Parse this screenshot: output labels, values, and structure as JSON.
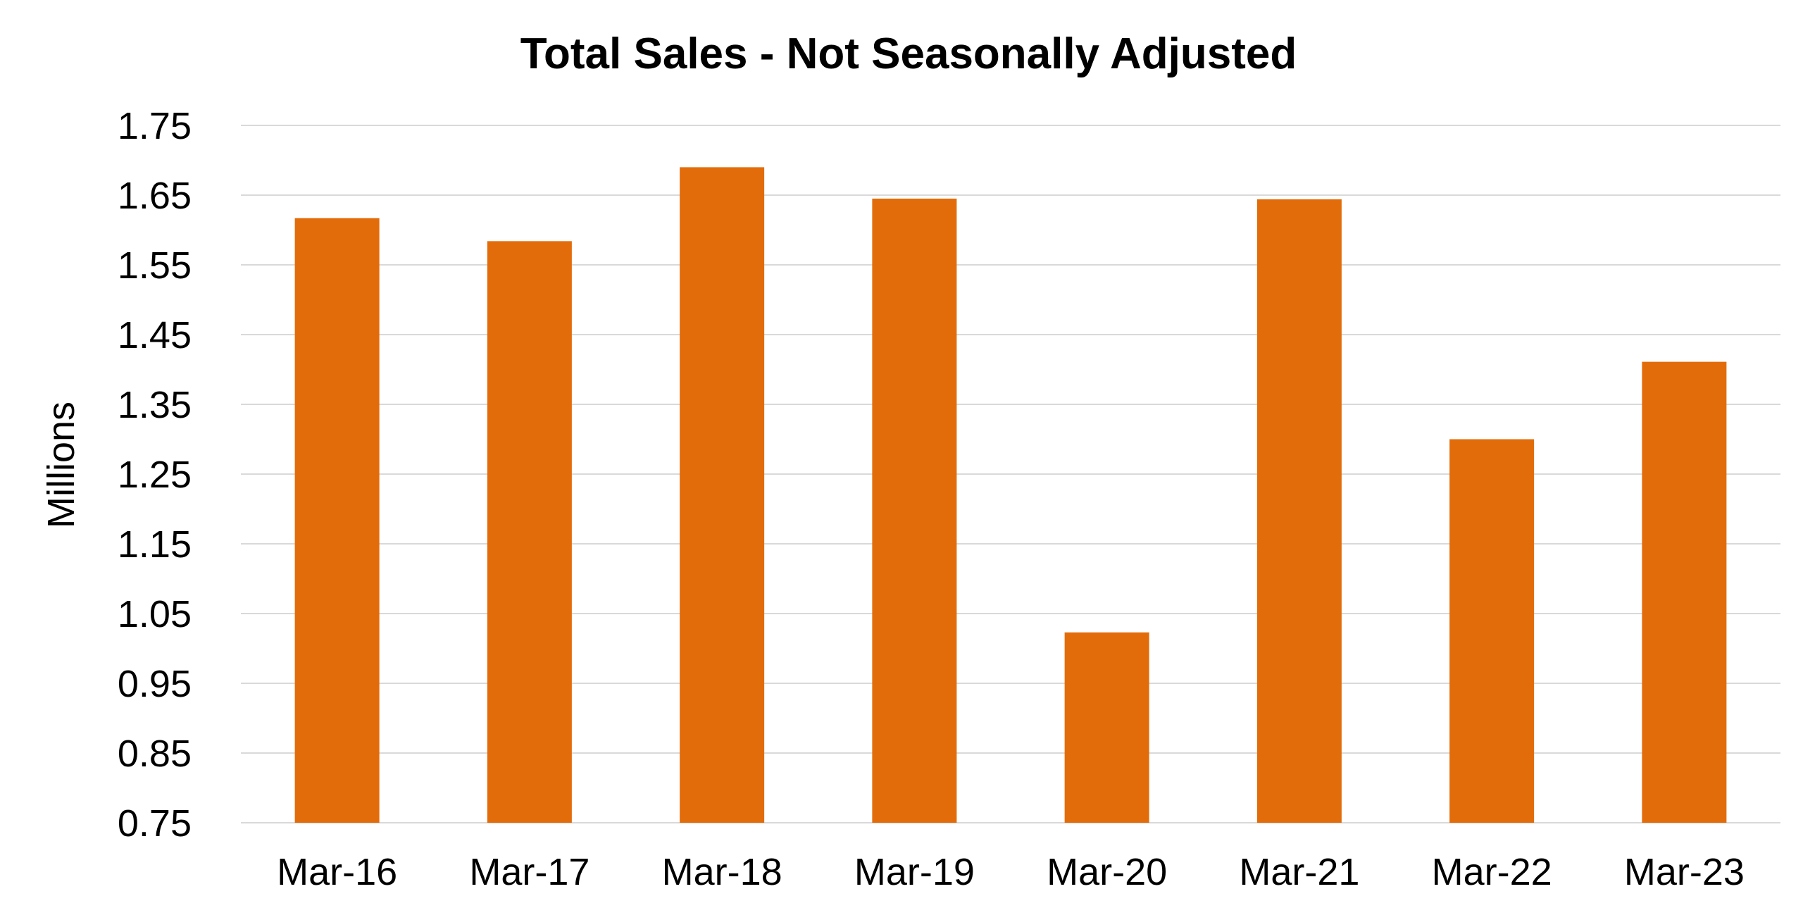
{
  "chart_data": {
    "type": "bar",
    "title": "Total Sales - Not Seasonally Adjusted",
    "xlabel": "",
    "ylabel": "Millions",
    "categories": [
      "Mar-16",
      "Mar-17",
      "Mar-18",
      "Mar-19",
      "Mar-20",
      "Mar-21",
      "Mar-22",
      "Mar-23"
    ],
    "values": [
      1.617,
      1.584,
      1.69,
      1.645,
      1.023,
      1.644,
      1.3,
      1.411
    ],
    "ylim": [
      0.75,
      1.75
    ],
    "yticks": [
      "0.75",
      "0.85",
      "0.95",
      "1.05",
      "1.15",
      "1.25",
      "1.35",
      "1.45",
      "1.55",
      "1.65",
      "1.75"
    ],
    "grid": true,
    "legend": "none",
    "bar_color": "#E36C0A",
    "grid_color": "#D9D9D9"
  }
}
